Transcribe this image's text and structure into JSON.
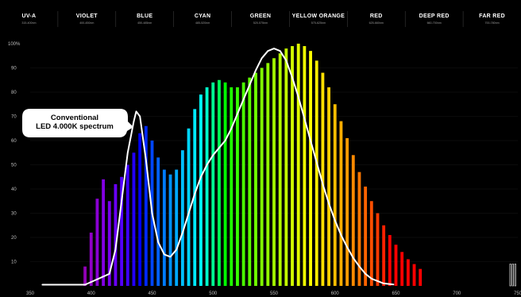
{
  "chart_data": {
    "type": "bar",
    "title": "",
    "xlabel": "",
    "ylabel": "",
    "xlim": [
      350,
      750
    ],
    "ylim": [
      0,
      100
    ],
    "x_ticks": [
      350,
      400,
      450,
      500,
      550,
      600,
      650,
      700,
      750
    ],
    "y_ticks": [
      10,
      20,
      30,
      40,
      50,
      60,
      70,
      80,
      90
    ],
    "y_top_label": "100%",
    "bands": [
      {
        "name": "UV-A",
        "range": "315-400nm"
      },
      {
        "name": "VIOLET",
        "range": "400-450nm"
      },
      {
        "name": "BLUE",
        "range": "450-485nm"
      },
      {
        "name": "CYAN",
        "range": "485-520nm"
      },
      {
        "name": "GREEN",
        "range": "520-575nm"
      },
      {
        "name": "YELLOW ORANGE",
        "range": "575-625nm"
      },
      {
        "name": "RED",
        "range": "625-660nm"
      },
      {
        "name": "DEEP RED",
        "range": "660-700nm"
      },
      {
        "name": "FAR RED",
        "range": "700-780nm"
      }
    ],
    "bar_width_nm": 2.5,
    "bars": [
      {
        "x": 395,
        "y": 8
      },
      {
        "x": 400,
        "y": 22
      },
      {
        "x": 405,
        "y": 36
      },
      {
        "x": 410,
        "y": 44
      },
      {
        "x": 415,
        "y": 35
      },
      {
        "x": 420,
        "y": 42
      },
      {
        "x": 425,
        "y": 45
      },
      {
        "x": 430,
        "y": 50
      },
      {
        "x": 435,
        "y": 55
      },
      {
        "x": 440,
        "y": 63
      },
      {
        "x": 445,
        "y": 66
      },
      {
        "x": 450,
        "y": 60
      },
      {
        "x": 455,
        "y": 53
      },
      {
        "x": 460,
        "y": 48
      },
      {
        "x": 465,
        "y": 46
      },
      {
        "x": 470,
        "y": 48
      },
      {
        "x": 475,
        "y": 56
      },
      {
        "x": 480,
        "y": 65
      },
      {
        "x": 485,
        "y": 73
      },
      {
        "x": 490,
        "y": 79
      },
      {
        "x": 495,
        "y": 82
      },
      {
        "x": 500,
        "y": 84
      },
      {
        "x": 505,
        "y": 85
      },
      {
        "x": 510,
        "y": 84
      },
      {
        "x": 515,
        "y": 82
      },
      {
        "x": 520,
        "y": 82
      },
      {
        "x": 525,
        "y": 84
      },
      {
        "x": 530,
        "y": 86
      },
      {
        "x": 535,
        "y": 88
      },
      {
        "x": 540,
        "y": 90
      },
      {
        "x": 545,
        "y": 92
      },
      {
        "x": 550,
        "y": 94
      },
      {
        "x": 555,
        "y": 96
      },
      {
        "x": 560,
        "y": 98
      },
      {
        "x": 565,
        "y": 99
      },
      {
        "x": 570,
        "y": 100
      },
      {
        "x": 575,
        "y": 99
      },
      {
        "x": 580,
        "y": 97
      },
      {
        "x": 585,
        "y": 93
      },
      {
        "x": 590,
        "y": 88
      },
      {
        "x": 595,
        "y": 82
      },
      {
        "x": 600,
        "y": 75
      },
      {
        "x": 605,
        "y": 68
      },
      {
        "x": 610,
        "y": 61
      },
      {
        "x": 615,
        "y": 54
      },
      {
        "x": 620,
        "y": 47
      },
      {
        "x": 625,
        "y": 41
      },
      {
        "x": 630,
        "y": 35
      },
      {
        "x": 635,
        "y": 30
      },
      {
        "x": 640,
        "y": 25
      },
      {
        "x": 645,
        "y": 21
      },
      {
        "x": 650,
        "y": 17
      },
      {
        "x": 655,
        "y": 14
      },
      {
        "x": 660,
        "y": 11
      },
      {
        "x": 665,
        "y": 9
      },
      {
        "x": 670,
        "y": 7
      }
    ],
    "series": [
      {
        "name": "Conventional LED 4.000K spectrum",
        "points": [
          [
            360,
            0.5
          ],
          [
            395,
            0.5
          ],
          [
            415,
            5
          ],
          [
            420,
            15
          ],
          [
            425,
            35
          ],
          [
            430,
            55
          ],
          [
            435,
            68
          ],
          [
            437,
            72
          ],
          [
            440,
            70
          ],
          [
            445,
            52
          ],
          [
            450,
            30
          ],
          [
            455,
            18
          ],
          [
            460,
            13
          ],
          [
            465,
            12
          ],
          [
            470,
            15
          ],
          [
            475,
            22
          ],
          [
            480,
            30
          ],
          [
            485,
            38
          ],
          [
            490,
            45
          ],
          [
            495,
            50
          ],
          [
            500,
            54
          ],
          [
            505,
            57
          ],
          [
            510,
            60
          ],
          [
            515,
            65
          ],
          [
            520,
            71
          ],
          [
            525,
            77
          ],
          [
            530,
            83
          ],
          [
            535,
            89
          ],
          [
            540,
            94
          ],
          [
            545,
            97
          ],
          [
            550,
            98
          ],
          [
            555,
            97
          ],
          [
            560,
            93
          ],
          [
            565,
            86
          ],
          [
            570,
            78
          ],
          [
            575,
            69
          ],
          [
            580,
            60
          ],
          [
            585,
            51
          ],
          [
            590,
            42
          ],
          [
            595,
            34
          ],
          [
            600,
            27
          ],
          [
            605,
            21
          ],
          [
            610,
            16
          ],
          [
            615,
            11.5
          ],
          [
            620,
            8
          ],
          [
            625,
            5
          ],
          [
            630,
            3
          ],
          [
            640,
            1
          ],
          [
            648,
            0.6
          ]
        ]
      }
    ],
    "annotations": [
      {
        "text_lines": [
          "Conventional",
          "LED 4.000K spectrum"
        ]
      }
    ]
  }
}
